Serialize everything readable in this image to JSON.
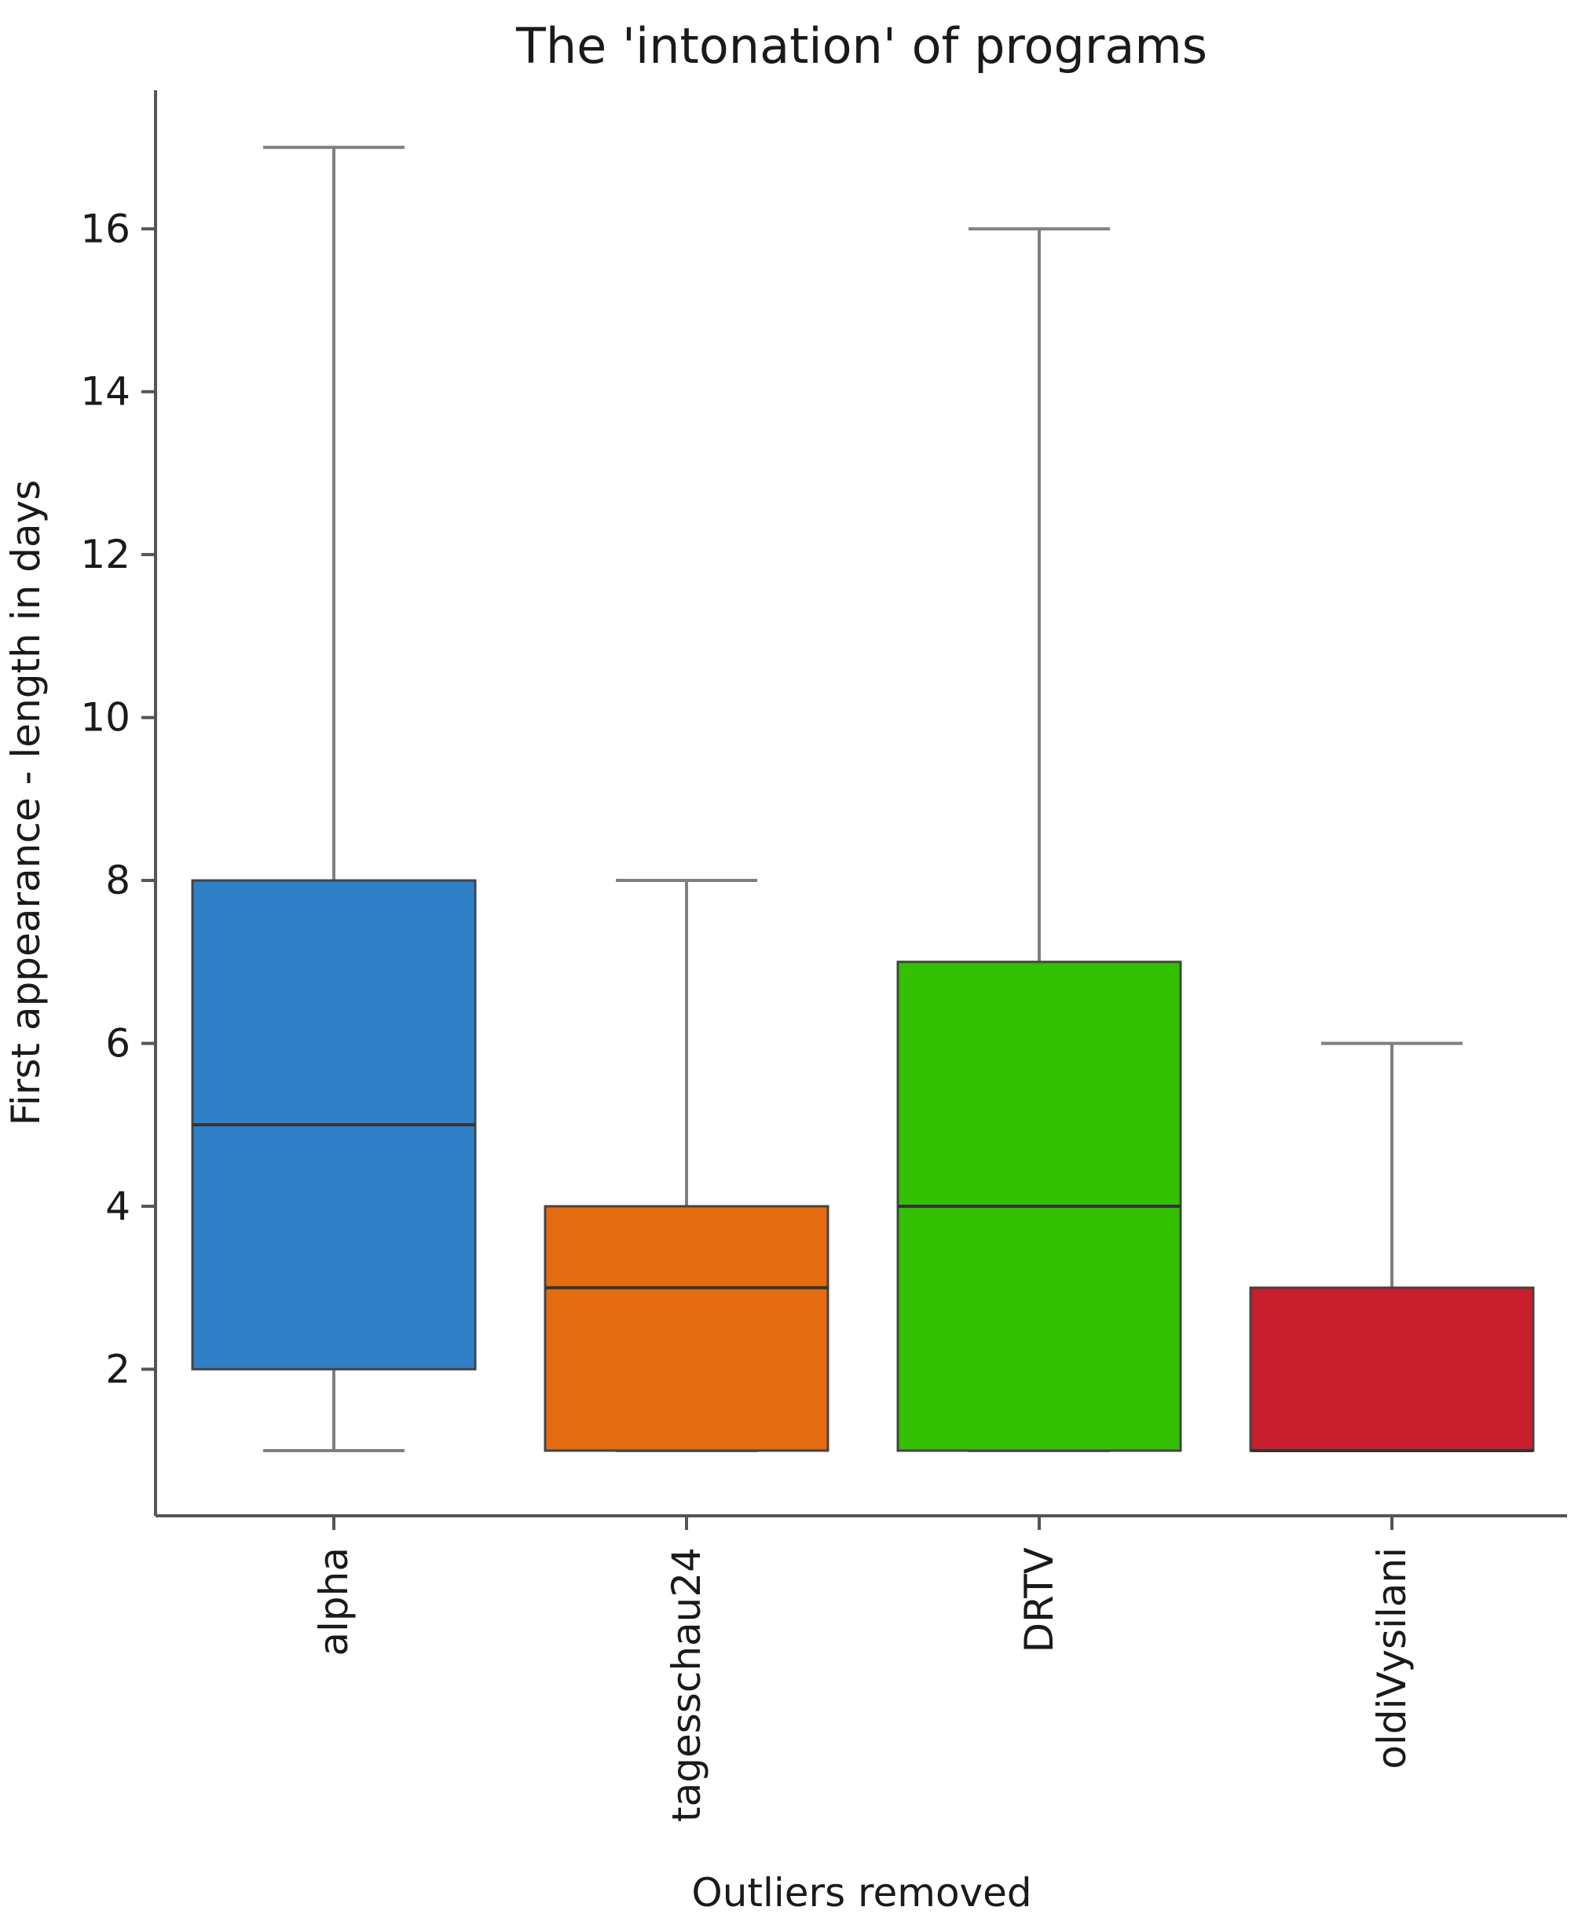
{
  "chart_data": {
    "type": "box",
    "title": "The 'intonation' of programs",
    "xlabel": "Outliers removed",
    "ylabel": "First appearance - length in days",
    "ylim": [
      0.2,
      17.7
    ],
    "yticks": [
      2,
      4,
      6,
      8,
      10,
      12,
      14,
      16
    ],
    "grid": false,
    "categories": [
      "alpha",
      "tagesschau24",
      "DRTV",
      "oldiVysilani"
    ],
    "boxes": [
      {
        "name": "alpha",
        "whisker_low": 1,
        "q1": 2,
        "median": 5,
        "q3": 8,
        "whisker_high": 17,
        "color": "#3080c8"
      },
      {
        "name": "tagesschau24",
        "whisker_low": 1,
        "q1": 1,
        "median": 3,
        "q3": 4,
        "whisker_high": 8,
        "color": "#e56b10"
      },
      {
        "name": "DRTV",
        "whisker_low": 1,
        "q1": 1,
        "median": 4,
        "q3": 7,
        "whisker_high": 16,
        "color": "#33c000"
      },
      {
        "name": "oldiVysilani",
        "whisker_low": 1,
        "q1": 1,
        "median": 1,
        "q3": 3,
        "whisker_high": 6,
        "color": "#c81e2e"
      }
    ]
  }
}
